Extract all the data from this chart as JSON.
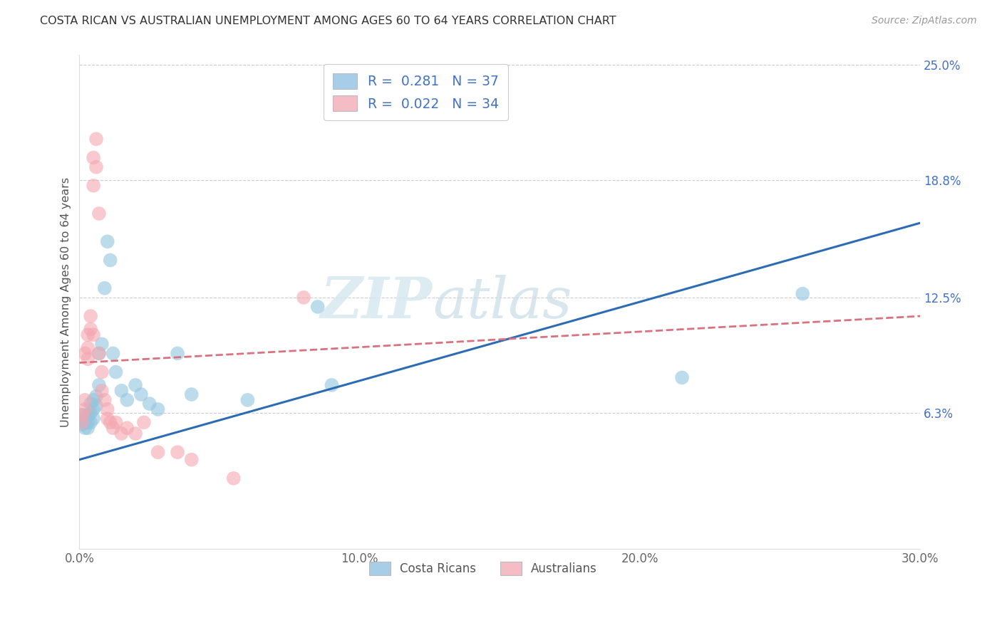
{
  "title": "COSTA RICAN VS AUSTRALIAN UNEMPLOYMENT AMONG AGES 60 TO 64 YEARS CORRELATION CHART",
  "source": "Source: ZipAtlas.com",
  "ylabel": "Unemployment Among Ages 60 to 64 years",
  "xlim": [
    0.0,
    0.3
  ],
  "ylim": [
    -0.01,
    0.255
  ],
  "ytick_labels": [
    "6.3%",
    "12.5%",
    "18.8%",
    "25.0%"
  ],
  "ytick_values": [
    0.063,
    0.125,
    0.188,
    0.25
  ],
  "xtick_labels": [
    "0.0%",
    "10.0%",
    "20.0%",
    "30.0%"
  ],
  "xtick_values": [
    0.0,
    0.1,
    0.2,
    0.3
  ],
  "legend_bottom": [
    "Costa Ricans",
    "Australians"
  ],
  "blue_scatter_color": "#92c5de",
  "pink_scatter_color": "#f4a6b0",
  "blue_line_color": "#2b6cb5",
  "pink_line_color": "#d9727e",
  "blue_legend_color": "#a8cde8",
  "pink_legend_color": "#f5bcc5",
  "watermark_zip": "ZIP",
  "watermark_atlas": "atlas",
  "costa_rican_points": [
    [
      0.001,
      0.062
    ],
    [
      0.001,
      0.057
    ],
    [
      0.002,
      0.055
    ],
    [
      0.002,
      0.06
    ],
    [
      0.002,
      0.058
    ],
    [
      0.003,
      0.062
    ],
    [
      0.003,
      0.058
    ],
    [
      0.003,
      0.055
    ],
    [
      0.004,
      0.068
    ],
    [
      0.004,
      0.063
    ],
    [
      0.004,
      0.058
    ],
    [
      0.005,
      0.07
    ],
    [
      0.005,
      0.065
    ],
    [
      0.005,
      0.06
    ],
    [
      0.006,
      0.072
    ],
    [
      0.006,
      0.067
    ],
    [
      0.007,
      0.095
    ],
    [
      0.007,
      0.078
    ],
    [
      0.008,
      0.1
    ],
    [
      0.009,
      0.13
    ],
    [
      0.01,
      0.155
    ],
    [
      0.011,
      0.145
    ],
    [
      0.012,
      0.095
    ],
    [
      0.013,
      0.085
    ],
    [
      0.015,
      0.075
    ],
    [
      0.017,
      0.07
    ],
    [
      0.02,
      0.078
    ],
    [
      0.022,
      0.073
    ],
    [
      0.025,
      0.068
    ],
    [
      0.028,
      0.065
    ],
    [
      0.035,
      0.095
    ],
    [
      0.04,
      0.073
    ],
    [
      0.06,
      0.07
    ],
    [
      0.085,
      0.12
    ],
    [
      0.09,
      0.078
    ],
    [
      0.215,
      0.082
    ],
    [
      0.258,
      0.127
    ]
  ],
  "australian_points": [
    [
      0.001,
      0.058
    ],
    [
      0.001,
      0.062
    ],
    [
      0.002,
      0.065
    ],
    [
      0.002,
      0.07
    ],
    [
      0.002,
      0.095
    ],
    [
      0.003,
      0.092
    ],
    [
      0.003,
      0.098
    ],
    [
      0.003,
      0.105
    ],
    [
      0.004,
      0.115
    ],
    [
      0.004,
      0.108
    ],
    [
      0.005,
      0.105
    ],
    [
      0.005,
      0.185
    ],
    [
      0.005,
      0.2
    ],
    [
      0.006,
      0.21
    ],
    [
      0.006,
      0.195
    ],
    [
      0.007,
      0.17
    ],
    [
      0.007,
      0.095
    ],
    [
      0.008,
      0.085
    ],
    [
      0.008,
      0.075
    ],
    [
      0.009,
      0.07
    ],
    [
      0.01,
      0.065
    ],
    [
      0.01,
      0.06
    ],
    [
      0.011,
      0.058
    ],
    [
      0.012,
      0.055
    ],
    [
      0.013,
      0.058
    ],
    [
      0.015,
      0.052
    ],
    [
      0.017,
      0.055
    ],
    [
      0.02,
      0.052
    ],
    [
      0.023,
      0.058
    ],
    [
      0.028,
      0.042
    ],
    [
      0.035,
      0.042
    ],
    [
      0.04,
      0.038
    ],
    [
      0.055,
      0.028
    ],
    [
      0.08,
      0.125
    ]
  ],
  "cr_line_x": [
    0.0,
    0.3
  ],
  "cr_line_y": [
    0.038,
    0.165
  ],
  "au_line_x": [
    0.0,
    0.3
  ],
  "au_line_y": [
    0.09,
    0.115
  ]
}
